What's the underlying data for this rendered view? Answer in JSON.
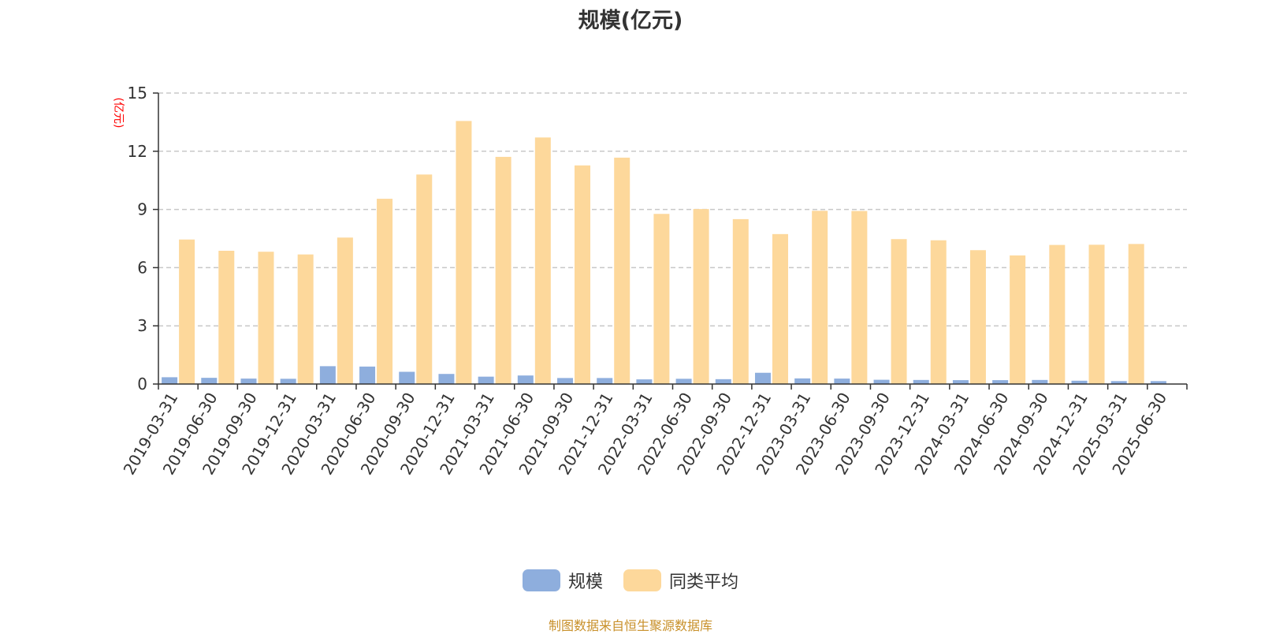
{
  "title": "规模(亿元)",
  "source_note": "制图数据来自恒生聚源数据库",
  "colors": {
    "scale": "#8eaedd",
    "peer_avg": "#fdd89b",
    "unit": "#ff0000",
    "source": "#c8902a"
  },
  "chart_data": {
    "type": "bar",
    "title": "规模(亿元)",
    "ylabel": "(亿元)",
    "xlabel": "",
    "ylim": [
      0,
      15
    ],
    "yticks": [
      0,
      3,
      6,
      9,
      12,
      15
    ],
    "grid": true,
    "legend_position": "bottom",
    "categories": [
      "2019-03-31",
      "2019-06-30",
      "2019-09-30",
      "2019-12-31",
      "2020-03-31",
      "2020-06-30",
      "2020-09-30",
      "2020-12-31",
      "2021-03-31",
      "2021-06-30",
      "2021-09-30",
      "2021-12-31",
      "2022-03-31",
      "2022-06-30",
      "2022-09-30",
      "2022-12-31",
      "2023-03-31",
      "2023-06-30",
      "2023-09-30",
      "2023-12-31",
      "2024-03-31",
      "2024-06-30",
      "2024-09-30",
      "2024-12-31",
      "2025-03-31",
      "2025-06-30"
    ],
    "series": [
      {
        "name": "规模",
        "values": [
          0.35,
          0.32,
          0.28,
          0.27,
          0.92,
          0.9,
          0.63,
          0.52,
          0.38,
          0.44,
          0.31,
          0.31,
          0.24,
          0.27,
          0.25,
          0.58,
          0.29,
          0.28,
          0.22,
          0.21,
          0.2,
          0.2,
          0.21,
          0.17,
          0.15,
          0.15
        ]
      },
      {
        "name": "同类平均",
        "values": [
          7.45,
          6.87,
          6.82,
          6.68,
          7.55,
          9.55,
          10.8,
          13.56,
          11.71,
          12.71,
          11.27,
          11.67,
          8.77,
          9.02,
          8.5,
          7.73,
          8.93,
          8.92,
          7.47,
          7.41,
          6.9,
          6.63,
          7.17,
          7.18,
          7.22,
          null
        ]
      }
    ]
  }
}
